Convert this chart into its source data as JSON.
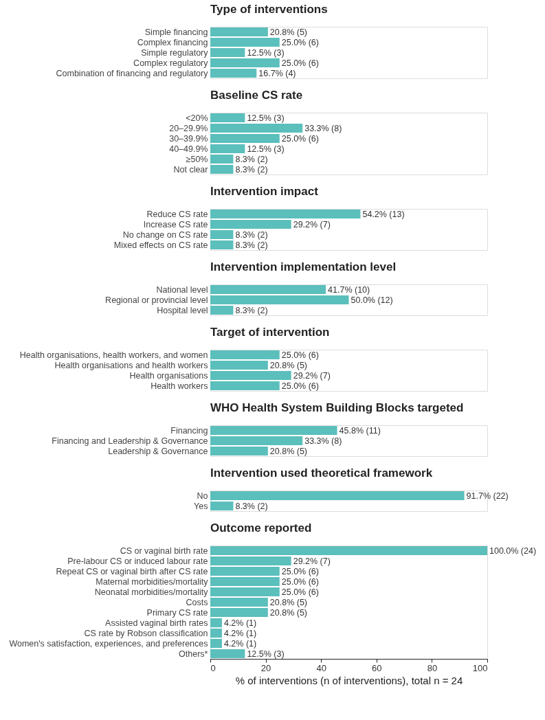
{
  "chart_data": [
    {
      "type": "bar",
      "orientation": "horizontal",
      "title": "Type of interventions",
      "categories": [
        "Simple financing",
        "Complex financing",
        "Simple regulatory",
        "Complex regulatory",
        "Combination of financing and regulatory"
      ],
      "values": [
        20.8,
        25.0,
        12.5,
        25.0,
        16.7
      ],
      "value_labels": [
        "20.8% (5)",
        "25.0% (6)",
        "12.5% (3)",
        "25.0% (6)",
        "16.7% (4)"
      ],
      "color": "#5bbfbc",
      "xlim": [
        0,
        100
      ],
      "tick_labels": "y"
    },
    {
      "type": "bar",
      "orientation": "horizontal",
      "title": "Baseline CS rate",
      "categories": [
        "<20%",
        "20–29.9%",
        "30–39.9%",
        "40–49.9%",
        "≥50%",
        "Not clear"
      ],
      "values": [
        12.5,
        33.3,
        25.0,
        12.5,
        8.3,
        8.3
      ],
      "value_labels": [
        "12.5% (3)",
        "33.3% (8)",
        "25.0% (6)",
        "12.5% (3)",
        "8.3% (2)",
        "8.3% (2)"
      ],
      "color": "#5bbfbc",
      "xlim": [
        0,
        100
      ],
      "tick_labels": "y"
    },
    {
      "type": "bar",
      "orientation": "horizontal",
      "title": "Intervention impact",
      "categories": [
        "Reduce CS rate",
        "Increase CS rate",
        "No change on CS rate",
        "Mixed effects on CS rate"
      ],
      "values": [
        54.2,
        29.2,
        8.3,
        8.3
      ],
      "value_labels": [
        "54.2% (13)",
        "29.2% (7)",
        "8.3% (2)",
        "8.3% (2)"
      ],
      "color": "#5bbfbc",
      "xlim": [
        0,
        100
      ],
      "tick_labels": "y"
    },
    {
      "type": "bar",
      "orientation": "horizontal",
      "title": "Intervention implementation level",
      "categories": [
        "National level",
        "Regional or provincial level",
        "Hospital level"
      ],
      "values": [
        41.7,
        50.0,
        8.3
      ],
      "value_labels": [
        "41.7% (10)",
        "50.0% (12)",
        "8.3% (2)"
      ],
      "color": "#5bbfbc",
      "xlim": [
        0,
        100
      ],
      "tick_labels": "y"
    },
    {
      "type": "bar",
      "orientation": "horizontal",
      "title": "Target of intervention",
      "categories": [
        "Health organisations, health workers, and women",
        "Health organisations and health workers",
        "Health organisations",
        "Health workers"
      ],
      "values": [
        25.0,
        20.8,
        29.2,
        25.0
      ],
      "value_labels": [
        "25.0% (6)",
        "20.8% (5)",
        "29.2% (7)",
        "25.0% (6)"
      ],
      "color": "#5bbfbc",
      "xlim": [
        0,
        100
      ],
      "tick_labels": "y"
    },
    {
      "type": "bar",
      "orientation": "horizontal",
      "title": "WHO Health System Building Blocks targeted",
      "categories": [
        "Financing",
        "Financing and Leadership & Governance",
        "Leadership & Governance"
      ],
      "values": [
        45.8,
        33.3,
        20.8
      ],
      "value_labels": [
        "45.8% (11)",
        "33.3% (8)",
        "20.8% (5)"
      ],
      "color": "#5bbfbc",
      "xlim": [
        0,
        100
      ],
      "tick_labels": "y"
    },
    {
      "type": "bar",
      "orientation": "horizontal",
      "title": "Intervention used theoretical framework",
      "categories": [
        "No",
        "Yes"
      ],
      "values": [
        91.7,
        8.3
      ],
      "value_labels": [
        "91.7% (22)",
        "8.3% (2)"
      ],
      "color": "#5bbfbc",
      "xlim": [
        0,
        100
      ],
      "tick_labels": "y"
    },
    {
      "type": "bar",
      "orientation": "horizontal",
      "title": "Outcome reported",
      "xlabel": "% of interventions (n of interventions), total n = 24",
      "categories": [
        "CS or vaginal birth rate",
        "Pre-labour CS or induced labour rate",
        "Repeat CS or vaginal birth after CS rate",
        "Maternal morbidities/mortality",
        "Neonatal morbidities/mortality",
        "Costs",
        "Primary CS rate",
        "Assisted vaginal birth rates",
        "CS rate by Robson classification",
        "Women's satisfaction, experiences, and preferences",
        "Others*"
      ],
      "values": [
        100.0,
        29.2,
        25.0,
        25.0,
        25.0,
        20.8,
        20.8,
        4.2,
        4.2,
        4.2,
        12.5
      ],
      "value_labels": [
        "100.0% (24)",
        "29.2% (7)",
        "25.0% (6)",
        "25.0% (6)",
        "25.0% (6)",
        "20.8% (5)",
        "20.8% (5)",
        "4.2% (1)",
        "4.2% (1)",
        "4.2% (1)",
        "12.5% (3)"
      ],
      "color": "#5bbfbc",
      "xlim": [
        0,
        100
      ],
      "xticks": [
        0,
        20,
        40,
        60,
        80,
        100
      ]
    }
  ]
}
